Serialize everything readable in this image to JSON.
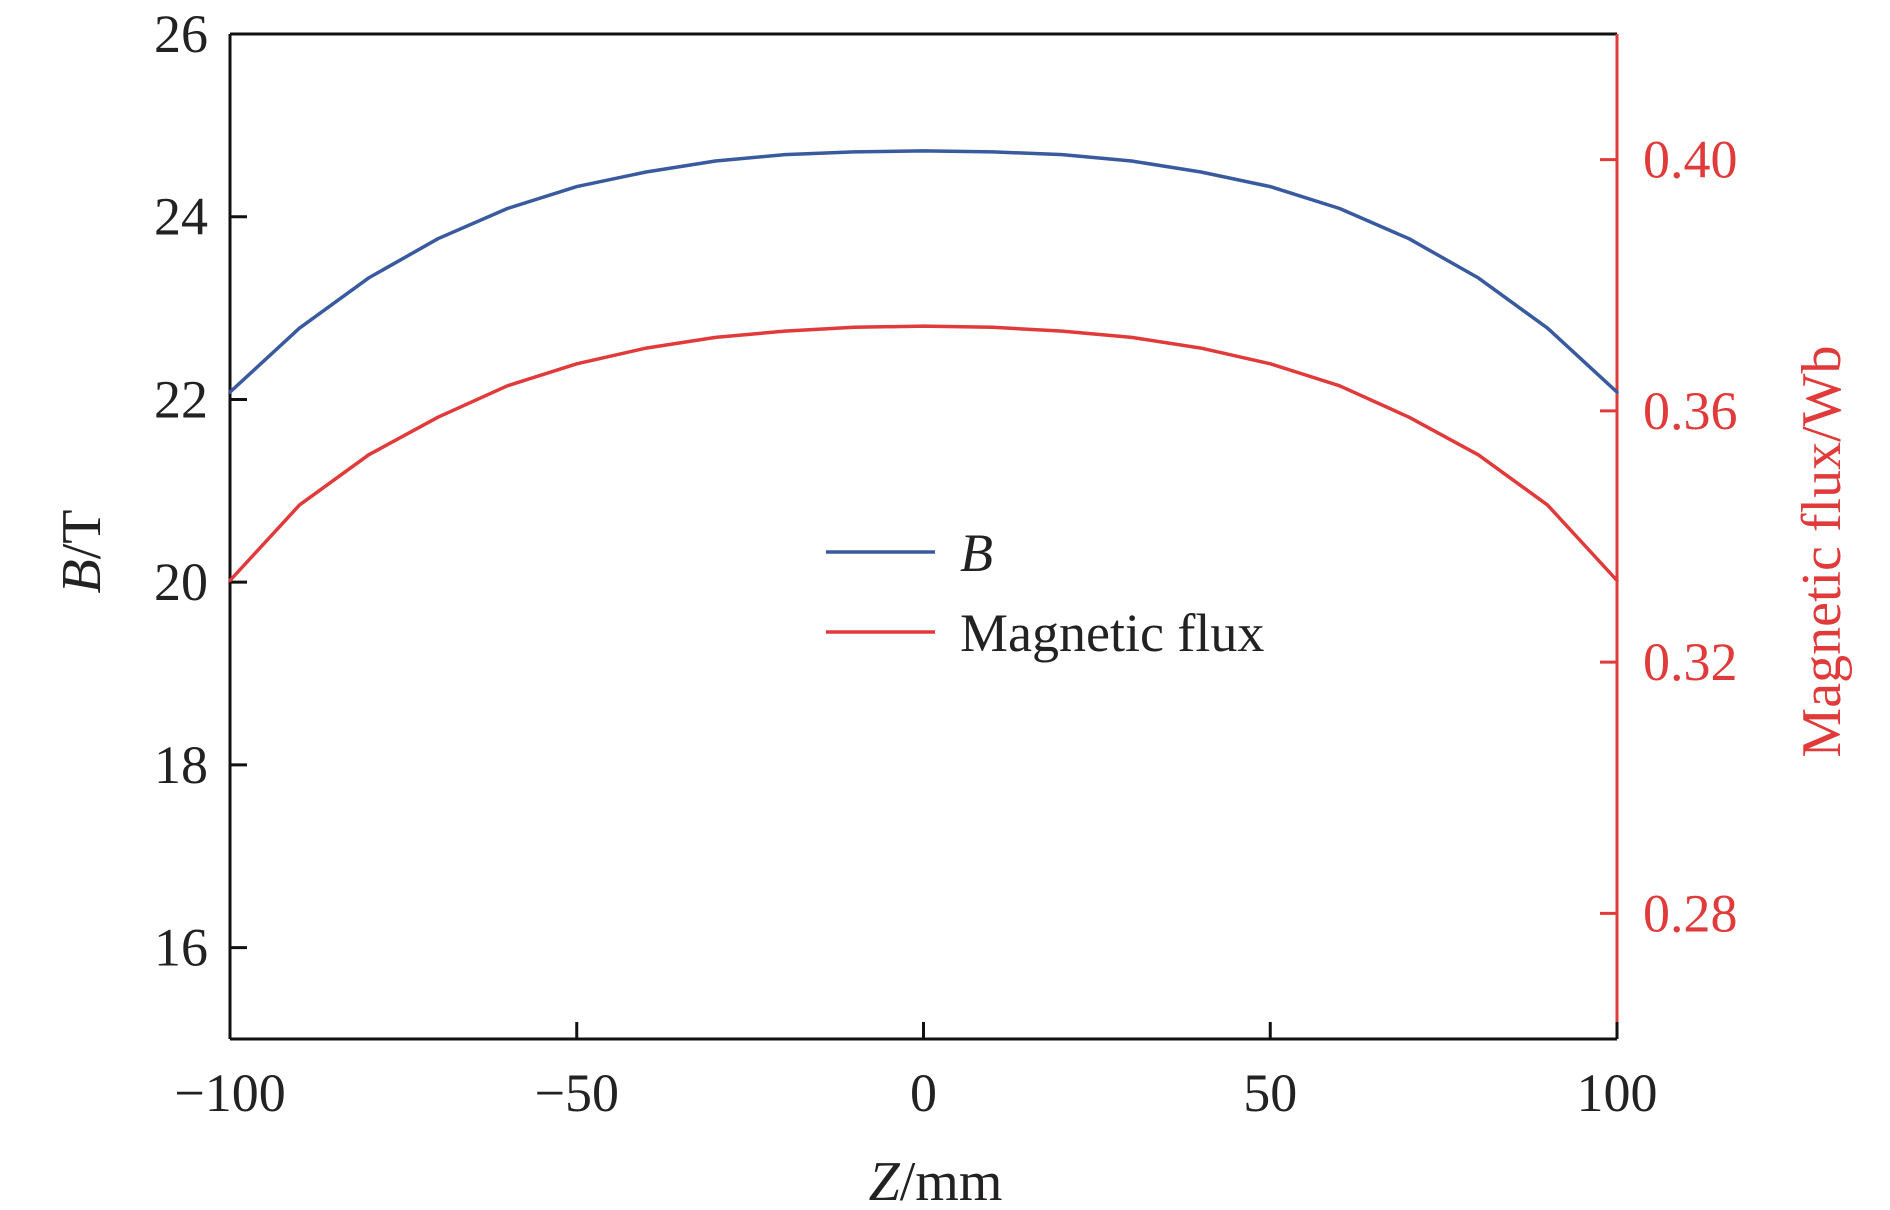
{
  "chart_data": {
    "type": "line",
    "x": [
      -100,
      -90,
      -80,
      -70,
      -60,
      -50,
      -40,
      -30,
      -20,
      -10,
      0,
      10,
      20,
      30,
      40,
      50,
      60,
      70,
      80,
      90,
      100
    ],
    "xlabel": {
      "italic": "Z",
      "rest": "/mm"
    },
    "xlim": [
      -100,
      100
    ],
    "xticks": [
      "−100",
      "−50",
      "0",
      "50",
      "100"
    ],
    "xtick_values": [
      -100,
      -50,
      0,
      50,
      100
    ],
    "ylabel_left": {
      "italic": "B",
      "rest": "/T"
    },
    "ylim_left": [
      15,
      26
    ],
    "yticks_left": [
      "16",
      "18",
      "20",
      "22",
      "24",
      "26"
    ],
    "ytick_values_left": [
      16,
      18,
      20,
      22,
      24,
      26
    ],
    "ylabel_right": "Magnetic flux/Wb",
    "ylim_right": [
      0.26,
      0.42
    ],
    "yticks_right": [
      "0.28",
      "0.32",
      "0.36",
      "0.40"
    ],
    "ytick_values_right": [
      0.28,
      0.32,
      0.36,
      0.4
    ],
    "legend_position": "center",
    "series": [
      {
        "name": "B",
        "axis": "left",
        "color": "#3a5aa0",
        "values": [
          22.08,
          22.78,
          23.33,
          23.76,
          24.09,
          24.33,
          24.49,
          24.61,
          24.68,
          24.71,
          24.72,
          24.71,
          24.68,
          24.61,
          24.49,
          24.33,
          24.09,
          23.76,
          23.33,
          22.78,
          22.08
        ]
      },
      {
        "name": "Magnetic flux",
        "axis": "right",
        "color": "#e03a3a",
        "values": [
          0.333,
          0.345,
          0.353,
          0.359,
          0.364,
          0.3675,
          0.37,
          0.3717,
          0.3727,
          0.3733,
          0.3735,
          0.3733,
          0.3727,
          0.3717,
          0.37,
          0.3675,
          0.364,
          0.359,
          0.353,
          0.345,
          0.333
        ]
      }
    ]
  }
}
